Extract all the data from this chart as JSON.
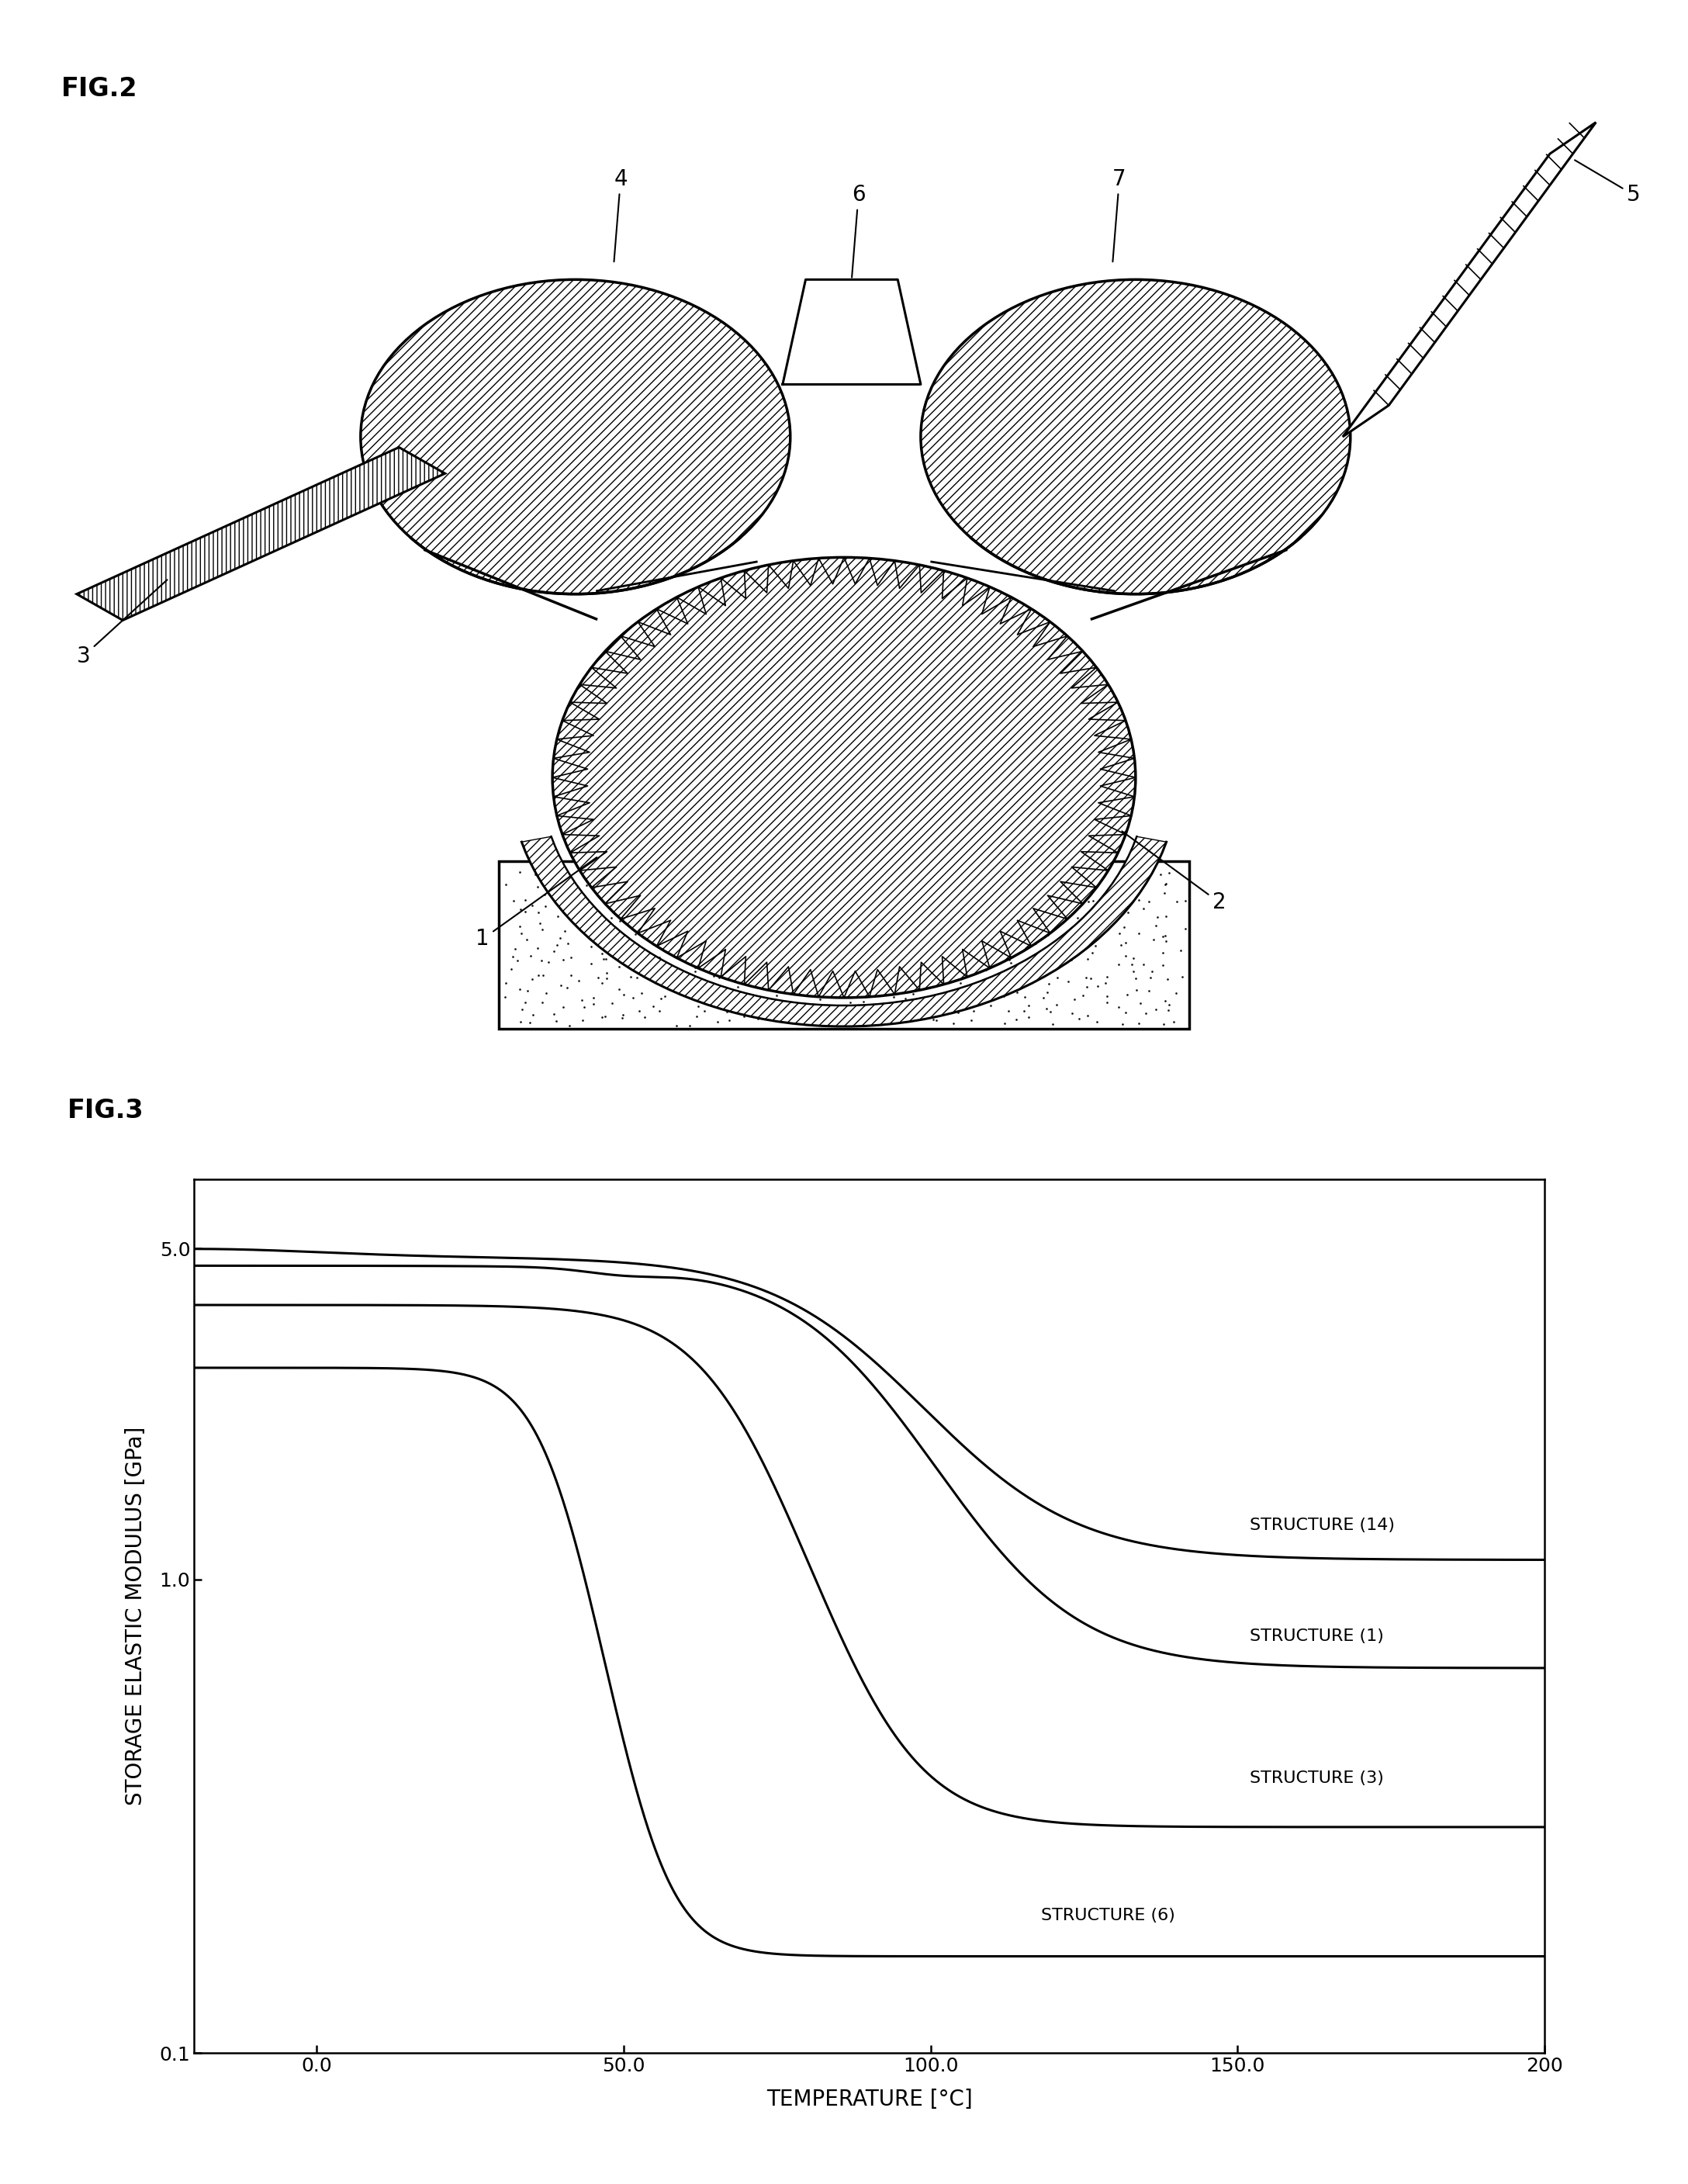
{
  "fig2_label": "FIG.2",
  "fig3_label": "FIG.3",
  "xlabel": "TEMPERATURE [°C]",
  "ylabel": "STORAGE ELASTIC MODULUS [GPa]",
  "xmin": -20,
  "xmax": 200,
  "xtick_vals": [
    0.0,
    50.0,
    100.0,
    150.0,
    200
  ],
  "xtick_labels": [
    "0.0",
    "50.0",
    "100.0",
    "150.0",
    "200"
  ],
  "ytick_vals": [
    0.1,
    1.0,
    5.0
  ],
  "ytick_labels": [
    "0.1",
    "1.0",
    "5.0"
  ],
  "curve_labels": [
    "STRUCTURE (14)",
    "STRUCTURE (1)",
    "STRUCTURE (3)",
    "STRUCTURE (6)"
  ],
  "background_color": "#ffffff",
  "line_color": "#000000",
  "label_fontsize": 20,
  "tick_fontsize": 18,
  "title_fontsize": 24,
  "annot_fontsize": 20
}
